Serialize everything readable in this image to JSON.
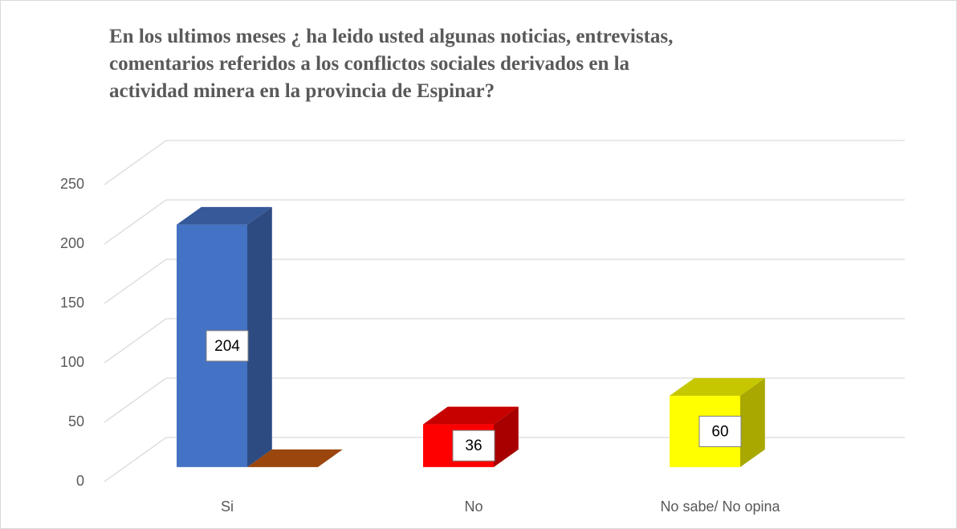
{
  "chart_data": {
    "type": "bar3d",
    "title": "En los ultimos meses ¿ ha leido usted algunas noticias, entrevistas, comentarios referidos a los conflictos sociales derivados en la actividad minera en la provincia de Espinar?",
    "categories": [
      "Si",
      "No",
      "No sabe/ No opina"
    ],
    "series": [
      {
        "values": [
          204,
          36,
          60
        ],
        "colors": [
          "#4472c4",
          "#ff0000",
          "#ffff00"
        ]
      },
      {
        "values": [
          0,
          null,
          null
        ],
        "color": "#c55a11"
      }
    ],
    "ylim": [
      0,
      250
    ],
    "yticks": [
      0,
      50,
      100,
      150,
      200,
      250
    ],
    "grid": true
  }
}
